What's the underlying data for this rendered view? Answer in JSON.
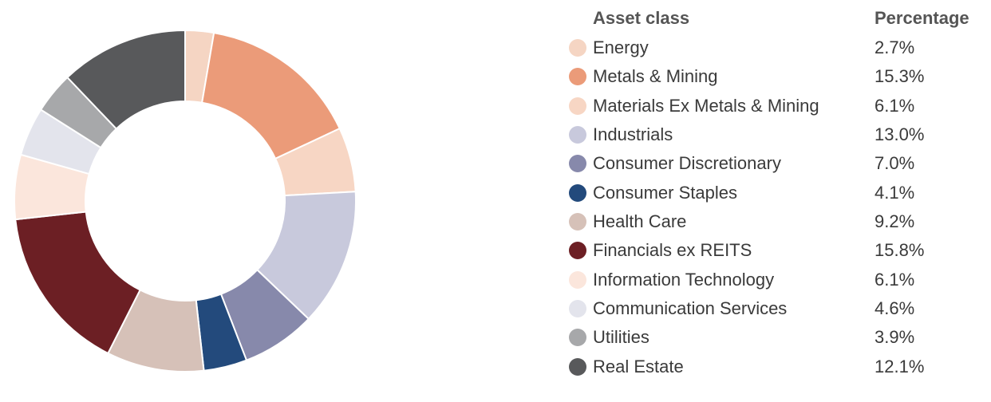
{
  "chart_data": {
    "type": "pie",
    "donut": true,
    "legend_position": "right",
    "headers": {
      "class": "Asset class",
      "percentage": "Percentage"
    },
    "slices": [
      {
        "label": "Energy",
        "value": 2.7,
        "display": "2.7%",
        "color": "#f5d5c3"
      },
      {
        "label": "Metals & Mining",
        "value": 15.3,
        "display": "15.3%",
        "color": "#eb9b79"
      },
      {
        "label": "Materials Ex Metals & Mining",
        "value": 6.1,
        "display": "6.1%",
        "color": "#f7d6c4"
      },
      {
        "label": "Industrials",
        "value": 13.0,
        "display": "13.0%",
        "color": "#c8c9dc"
      },
      {
        "label": "Consumer Discretionary",
        "value": 7.0,
        "display": "7.0%",
        "color": "#8789ab"
      },
      {
        "label": "Consumer Staples",
        "value": 4.1,
        "display": "4.1%",
        "color": "#234a7c"
      },
      {
        "label": "Health Care",
        "value": 9.2,
        "display": "9.2%",
        "color": "#d6c1b8"
      },
      {
        "label": "Financials ex REITS",
        "value": 15.8,
        "display": "15.8%",
        "color": "#6c1f24"
      },
      {
        "label": "Information Technology",
        "value": 6.1,
        "display": "6.1%",
        "color": "#fbe6dc"
      },
      {
        "label": "Communication Services",
        "value": 4.6,
        "display": "4.6%",
        "color": "#e3e4ec"
      },
      {
        "label": "Utilities",
        "value": 3.9,
        "display": "3.9%",
        "color": "#a7a8aa"
      },
      {
        "label": "Real Estate",
        "value": 12.1,
        "display": "12.1%",
        "color": "#58595b"
      }
    ]
  }
}
